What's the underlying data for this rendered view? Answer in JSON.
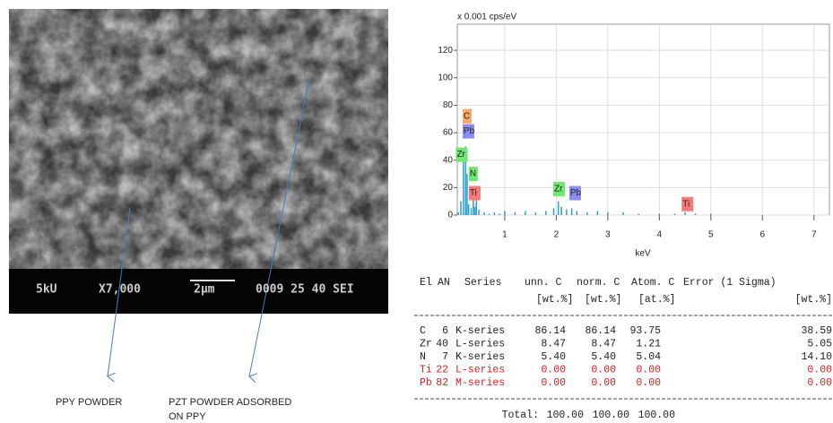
{
  "sem": {
    "info_bar": [
      "5kU",
      "X7,000",
      "2μm",
      "0009 25 40 SEI"
    ]
  },
  "annotations": [
    {
      "lines": [
        "PPY POWDER"
      ]
    },
    {
      "lines": [
        "PZT POWDER ADSORBED",
        "ON PPY"
      ]
    }
  ],
  "chart_data": {
    "type": "bar",
    "y_label": "x 0.001 cps/eV",
    "x_label": "keV",
    "color": "#2a9fd0",
    "grid": true,
    "x": [
      0.1,
      0.15,
      0.2,
      0.24,
      0.27,
      0.3,
      0.35,
      0.39,
      0.42,
      0.45,
      0.5,
      0.6,
      0.7,
      0.8,
      0.9,
      1.0,
      1.2,
      1.4,
      1.6,
      1.8,
      1.95,
      2.04,
      2.1,
      2.2,
      2.3,
      2.4,
      2.6,
      2.8,
      3.0,
      3.3,
      3.6,
      4.0,
      4.3,
      4.5,
      4.7,
      5.0,
      5.5,
      6.0,
      6.5,
      7.0
    ],
    "values": [
      2,
      10,
      45,
      50,
      30,
      8,
      5,
      15,
      6,
      16,
      4,
      2,
      1,
      2,
      1,
      3,
      2,
      3,
      2,
      3,
      5,
      10,
      6,
      4,
      5,
      3,
      2,
      3,
      2,
      2,
      1,
      1,
      1,
      2,
      1,
      1,
      0,
      0,
      0,
      0
    ],
    "xlim": [
      0.08,
      7.3
    ],
    "ylim": [
      0,
      139
    ],
    "xticks": [
      1,
      2,
      3,
      4,
      5,
      6,
      7
    ],
    "yticks": [
      0,
      20,
      40,
      60,
      80,
      100,
      120
    ],
    "peak_labels": [
      {
        "text": "C",
        "x": 0.27,
        "y": 72,
        "color": "#f6a96a"
      },
      {
        "text": "Pb",
        "x": 0.27,
        "y": 61,
        "color": "#8c8cf5"
      },
      {
        "text": "Zr",
        "x": 0.14,
        "y": 44,
        "color": "#6ee86e"
      },
      {
        "text": "N",
        "x": 0.39,
        "y": 30,
        "color": "#6ee86e"
      },
      {
        "text": "Ti",
        "x": 0.39,
        "y": 16,
        "color": "#f77a7a"
      },
      {
        "text": "Zr",
        "x": 2.03,
        "y": 19,
        "color": "#6ee86e"
      },
      {
        "text": "Pb",
        "x": 2.34,
        "y": 16,
        "color": "#8c8cf5"
      },
      {
        "text": "Ti",
        "x": 4.52,
        "y": 8,
        "color": "#f77a7a"
      }
    ]
  },
  "table": {
    "header": [
      "El",
      "AN",
      "Series",
      "unn. C",
      "norm. C",
      "Atom. C",
      "Error (1 Sigma)"
    ],
    "units": [
      "[wt.%]",
      "[wt.%]",
      "[at.%]",
      "[wt.%]"
    ],
    "rows": [
      [
        "C",
        "6",
        "K-series",
        "86.14",
        "86.14",
        "93.75",
        "38.59"
      ],
      [
        "Zr",
        "40",
        "L-series",
        "8.47",
        "8.47",
        "1.21",
        "5.05"
      ],
      [
        "N",
        "7",
        "K-series",
        "5.40",
        "5.40",
        "5.04",
        "14.10"
      ],
      [
        "Ti",
        "22",
        "L-series",
        "0.00",
        "0.00",
        "0.00",
        "0.00"
      ],
      [
        "Pb",
        "82",
        "M-series",
        "0.00",
        "0.00",
        "0.00",
        "0.00"
      ]
    ],
    "row_colors": [
      "#222222",
      "#222222",
      "#222222",
      "#e02020",
      "#e02020"
    ],
    "total": {
      "label": "Total:",
      "values": [
        "100.00",
        "100.00",
        "100.00"
      ]
    }
  }
}
